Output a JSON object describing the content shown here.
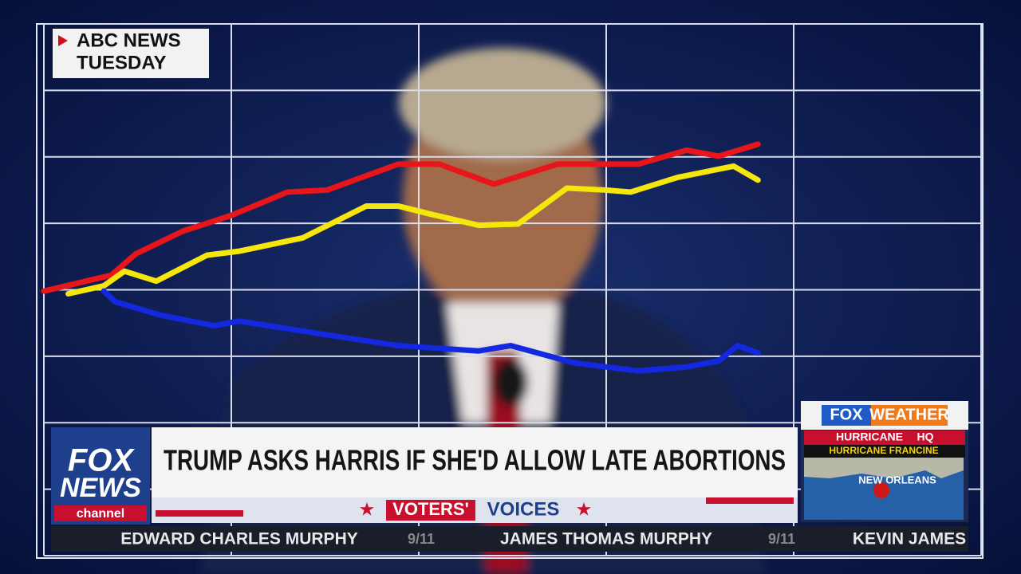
{
  "chart_data": {
    "type": "line",
    "xlim": [
      0,
      5
    ],
    "ylim": [
      -4,
      4
    ],
    "xticks": [
      0,
      1,
      2,
      3,
      4,
      5
    ],
    "yticks": [
      -4,
      -3,
      -2,
      -1,
      0,
      1,
      2,
      3,
      4
    ],
    "grid": true,
    "series": [
      {
        "name": null,
        "color": "#e8161a",
        "x": [
          0,
          0.36,
          0.49,
          0.74,
          1.0,
          1.3,
          1.51,
          1.89,
          2.11,
          2.4,
          2.74,
          3.17,
          3.43,
          3.6,
          3.81
        ],
        "values": [
          -0.02,
          0.22,
          0.54,
          0.88,
          1.12,
          1.47,
          1.5,
          1.89,
          1.89,
          1.59,
          1.89,
          1.89,
          2.1,
          2.01,
          2.19
        ]
      },
      {
        "name": null,
        "color": "#f5e60c",
        "x": [
          0.13,
          0.32,
          0.43,
          0.6,
          0.87,
          1.04,
          1.38,
          1.72,
          1.89,
          2.06,
          2.32,
          2.53,
          2.79,
          3.0,
          3.13,
          3.38,
          3.68,
          3.81
        ],
        "values": [
          -0.06,
          0.06,
          0.28,
          0.13,
          0.52,
          0.58,
          0.78,
          1.26,
          1.26,
          1.14,
          0.97,
          0.99,
          1.53,
          1.5,
          1.47,
          1.69,
          1.86,
          1.65
        ]
      },
      {
        "name": null,
        "color": "#1428e0",
        "x": [
          0.32,
          0.38,
          0.62,
          0.91,
          1.04,
          1.47,
          1.89,
          2.32,
          2.49,
          2.83,
          3.17,
          3.43,
          3.6,
          3.7,
          3.81
        ],
        "values": [
          -0.02,
          -0.18,
          -0.38,
          -0.54,
          -0.47,
          -0.66,
          -0.84,
          -0.92,
          -0.84,
          -1.1,
          -1.22,
          -1.16,
          -1.07,
          -0.84,
          -0.95
        ]
      }
    ]
  },
  "source_box": {
    "line1": "ABC NEWS",
    "line2": "TUESDAY"
  },
  "lower_third": {
    "headline": "TRUMP ASKS HARRIS IF SHE'D ALLOW LATE ABORTIONS",
    "logo_top": "FOX",
    "logo_mid": "NEWS",
    "logo_bottom": "channel",
    "segment_a": "VOTERS'",
    "segment_b": "VOICES"
  },
  "weather": {
    "brand_a": "FOX",
    "brand_b": "WEATHER",
    "tag_a": "HURRICANE",
    "tag_b": "HQ",
    "storm": "HURRICANE FRANCINE",
    "city": "NEW ORLEANS"
  },
  "ticker": [
    "EDWARD CHARLES MURPHY",
    "9/11",
    "JAMES THOMAS MURPHY",
    "9/11",
    "KEVIN JAMES"
  ]
}
